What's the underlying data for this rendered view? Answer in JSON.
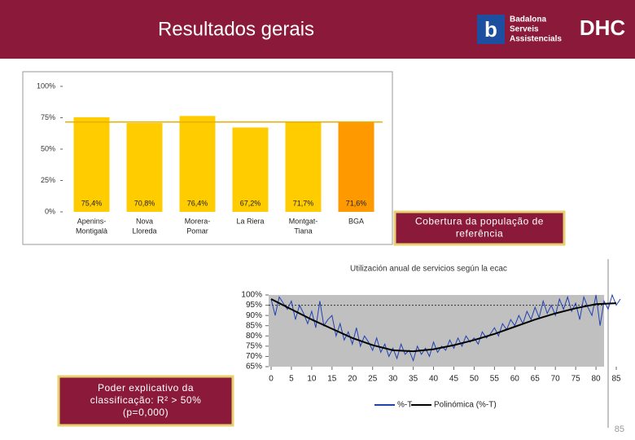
{
  "header": {
    "title": "Resultados gerais",
    "logo_mark": "b",
    "logo_text": [
      "Badalona",
      "Serveis",
      "Assistencials"
    ],
    "logo_brand": "DHC"
  },
  "chart_data": [
    {
      "type": "bar",
      "categories": [
        [
          "Apenins-",
          "Montigalà"
        ],
        [
          "Nova",
          "Lloreda"
        ],
        [
          "Morera-",
          "Pomar"
        ],
        [
          "La Riera"
        ],
        [
          "Montgat-",
          "Tiana"
        ],
        [
          "BGA"
        ]
      ],
      "values": [
        75.4,
        70.8,
        76.4,
        67.2,
        71.7,
        71.6
      ],
      "value_labels": [
        "75,4%",
        "70,8%",
        "76,4%",
        "67,2%",
        "71,7%",
        "71,6%"
      ],
      "colors": [
        "#ffcc00",
        "#ffcc00",
        "#ffcc00",
        "#ffcc00",
        "#ffcc00",
        "#ff9900"
      ],
      "reference_line": 71.6,
      "reference_color": "#e8b000",
      "ylim": [
        0,
        100
      ],
      "yticks": [
        {
          "value": 0,
          "label": "0%"
        },
        {
          "value": 25,
          "label": "25%"
        },
        {
          "value": 50,
          "label": "50%"
        },
        {
          "value": 75,
          "label": "75%"
        },
        {
          "value": 100,
          "label": "100%"
        }
      ]
    },
    {
      "type": "line",
      "title": "Utilización anual de servicios según la ecac",
      "x": [
        0,
        1,
        2,
        3,
        4,
        5,
        6,
        7,
        8,
        9,
        10,
        11,
        12,
        13,
        14,
        15,
        16,
        17,
        18,
        19,
        20,
        21,
        22,
        23,
        24,
        25,
        26,
        27,
        28,
        29,
        30,
        31,
        32,
        33,
        34,
        35,
        36,
        37,
        38,
        39,
        40,
        41,
        42,
        43,
        44,
        45,
        46,
        47,
        48,
        49,
        50,
        51,
        52,
        53,
        54,
        55,
        56,
        57,
        58,
        59,
        60,
        61,
        62,
        63,
        64,
        65,
        66,
        67,
        68,
        69,
        70,
        71,
        72,
        73,
        74,
        75,
        76,
        77,
        78,
        79,
        80,
        81,
        82,
        83,
        84,
        85,
        86
      ],
      "series": [
        {
          "name": "%-T",
          "color": "#2040b0",
          "values": [
            98,
            90,
            99,
            96,
            93,
            97,
            88,
            95,
            91,
            86,
            92,
            84,
            97,
            85,
            88,
            90,
            80,
            86,
            78,
            82,
            76,
            84,
            75,
            80,
            77,
            73,
            79,
            72,
            76,
            70,
            74,
            69,
            76,
            71,
            73,
            68,
            75,
            71,
            74,
            70,
            77,
            72,
            75,
            73,
            78,
            74,
            79,
            75,
            80,
            77,
            79,
            76,
            82,
            79,
            81,
            84,
            80,
            86,
            83,
            88,
            85,
            90,
            86,
            92,
            88,
            94,
            89,
            97,
            91,
            95,
            90,
            98,
            93,
            99,
            92,
            96,
            88,
            99,
            94,
            90,
            100,
            85,
            97,
            93,
            100,
            95,
            98
          ]
        },
        {
          "name": "Polinómica (%-T)",
          "color": "#000000",
          "x": [
            0,
            5,
            10,
            15,
            20,
            25,
            30,
            35,
            40,
            45,
            50,
            55,
            60,
            65,
            70,
            75,
            80,
            85
          ],
          "values": [
            98,
            93,
            88,
            83.5,
            79,
            75.5,
            73,
            72.5,
            73.5,
            75.5,
            78,
            81,
            84.5,
            88,
            91,
            93.5,
            95.5,
            96
          ]
        }
      ],
      "reference_line": 95,
      "xlim": [
        0,
        86
      ],
      "xticks": [
        0,
        5,
        10,
        15,
        20,
        25,
        30,
        35,
        40,
        45,
        50,
        55,
        60,
        65,
        70,
        75,
        80,
        85
      ],
      "ylim": [
        65,
        100
      ],
      "yticks": [
        {
          "value": 65,
          "label": "65%"
        },
        {
          "value": 70,
          "label": "70%"
        },
        {
          "value": 75,
          "label": "75%"
        },
        {
          "value": 80,
          "label": "80%"
        },
        {
          "value": 85,
          "label": "85%"
        },
        {
          "value": 90,
          "label": "90%"
        },
        {
          "value": 95,
          "label": "95%"
        },
        {
          "value": 100,
          "label": "100%"
        }
      ]
    }
  ],
  "callouts": [
    [
      "Cobertura da população de",
      "referência"
    ],
    [
      "Poder explicativo da",
      "classificação: R² > 50%",
      "(p=0,000)"
    ]
  ],
  "page_number": "85"
}
